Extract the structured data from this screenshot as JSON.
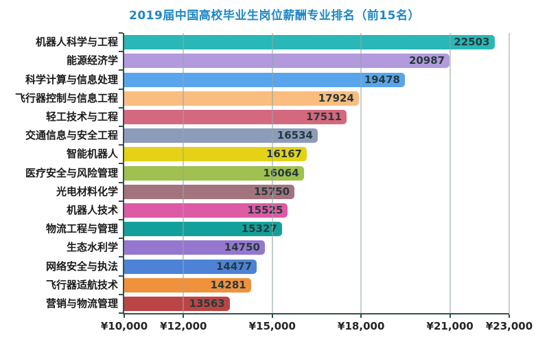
{
  "title": "2019届中国高校毕业生岗位薪酬专业排名（前15名）",
  "title_color": "#1e87c6",
  "chart_data": {
    "type": "bar",
    "orientation": "horizontal",
    "title": "2019届中国高校毕业生岗位薪酬专业排名（前15名）",
    "categories": [
      "机器人科学与工程",
      "能源经济学",
      "科学计算与信息处理",
      "飞行器控制与信息工程",
      "轻工技术与工程",
      "交通信息与安全工程",
      "智能机器人",
      "医疗安全与风险管理",
      "光电材料化学",
      "机器人技术",
      "物流工程与管理",
      "生态水利学",
      "网络安全与执法",
      "飞行器适航技术",
      "营销与物流管理"
    ],
    "values": [
      22503,
      20987,
      19478,
      17924,
      17511,
      16534,
      16167,
      16064,
      15750,
      15525,
      15327,
      14750,
      14477,
      14281,
      13563
    ],
    "bar_colors": [
      "#29b7b7",
      "#b29add",
      "#58a5ec",
      "#f9bd80",
      "#d4687d",
      "#8d9bbb",
      "#e5d216",
      "#a0c050",
      "#a3737f",
      "#dd5aa5",
      "#14a09a",
      "#9577cf",
      "#4d82d6",
      "#f0923d",
      "#bb4545"
    ],
    "xlim": [
      10000,
      23000
    ],
    "x_ticks": [
      10000,
      12000,
      15000,
      18000,
      21000,
      23000
    ],
    "x_tick_labels": [
      "¥10,000",
      "¥12,000",
      "¥15,000",
      "¥18,000",
      "¥21,000",
      "¥23,000"
    ],
    "grid": true,
    "legend": "none",
    "value_labels": "inside-end",
    "axis_color": "#33504f",
    "grid_color": "#94a8a8",
    "value_label_color": "#263a3a",
    "category_label_color": "#1a1a1a"
  }
}
